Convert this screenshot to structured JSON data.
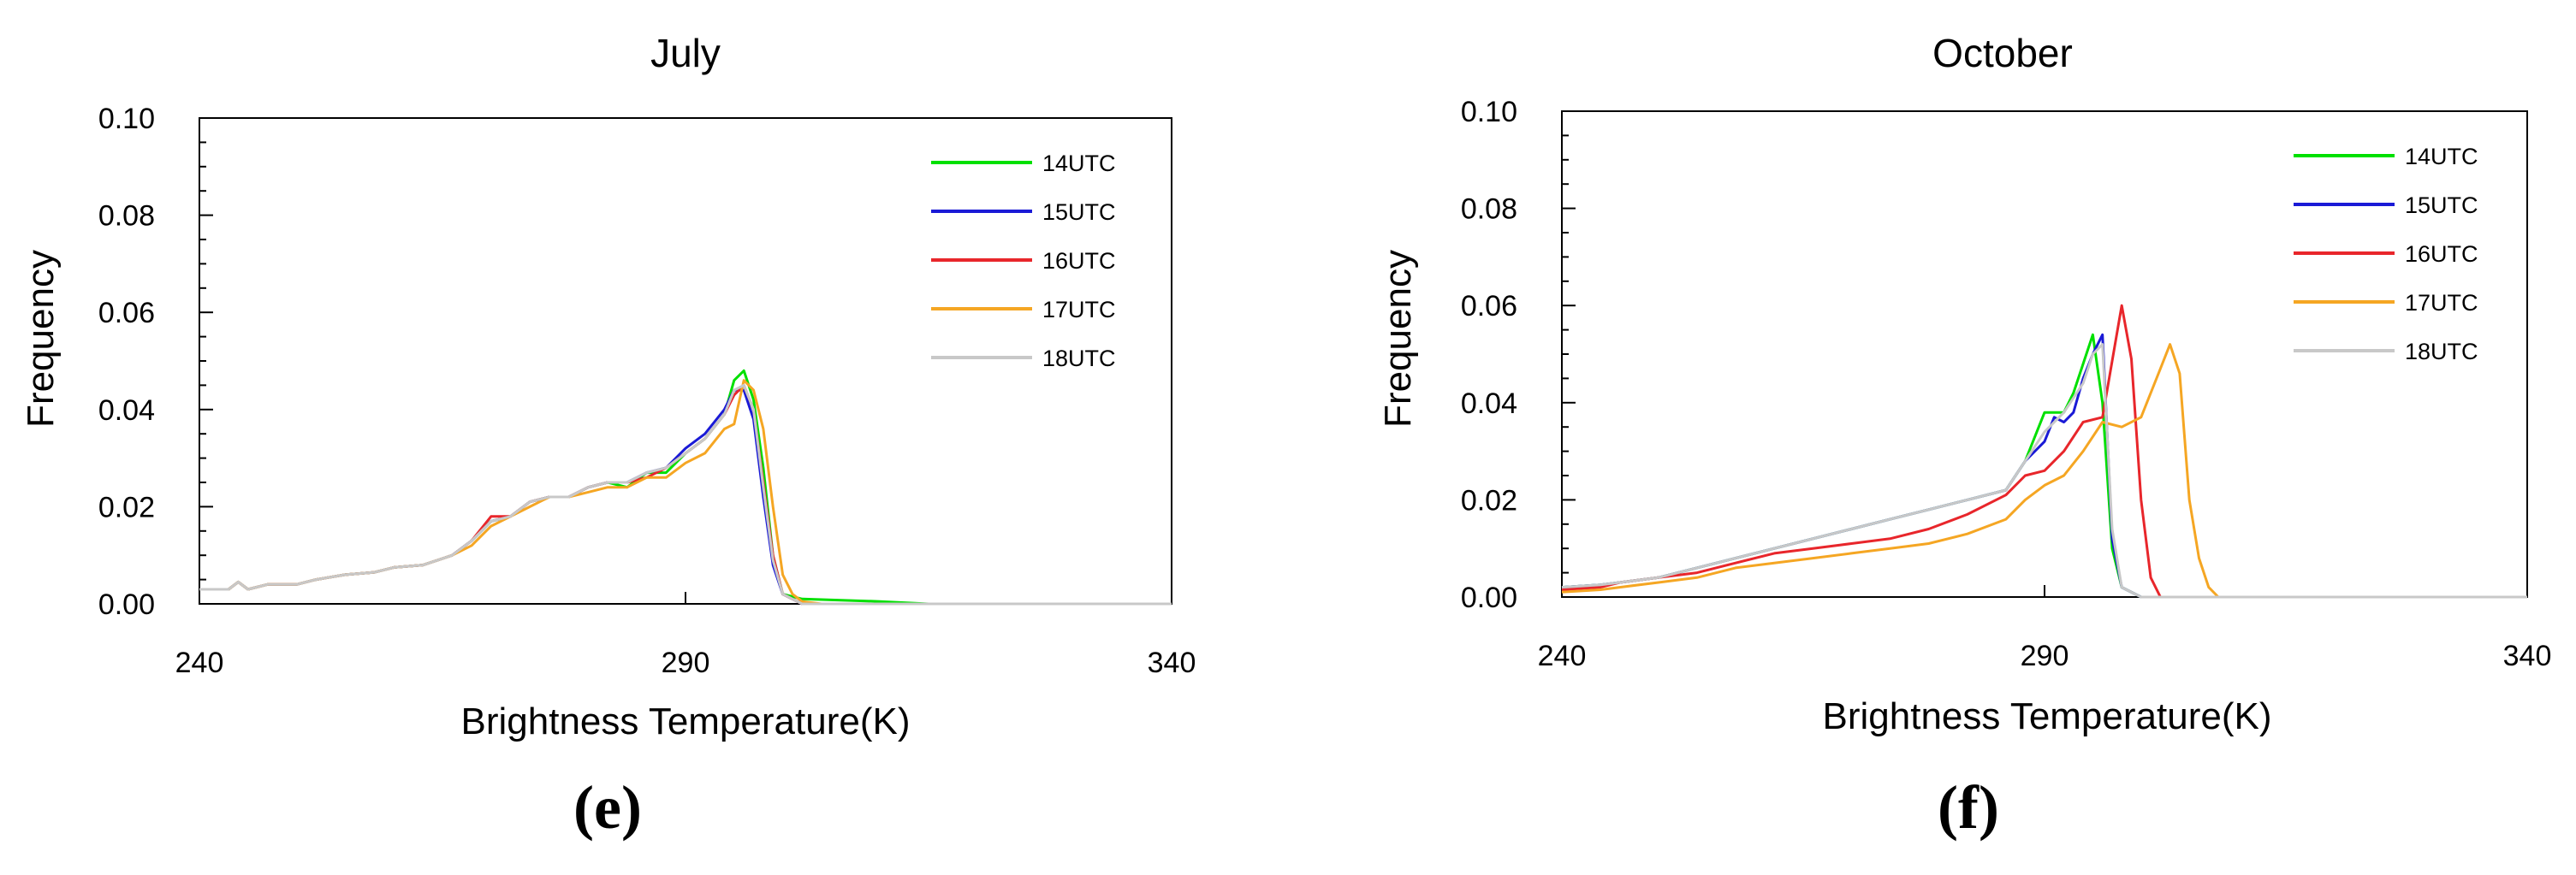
{
  "panels": [
    {
      "letter_text": "(e)"
    },
    {
      "letter_text": "(f)"
    }
  ],
  "chart_data": [
    {
      "type": "line",
      "title": "July",
      "xlabel": "Brightness Temperature(K)",
      "ylabel": "Frequency",
      "xlim": [
        240,
        340
      ],
      "ylim": [
        0,
        0.1
      ],
      "xticks": [
        240,
        290,
        340
      ],
      "yticks": [
        0.0,
        0.02,
        0.04,
        0.06,
        0.08,
        0.1
      ],
      "ytick_labels": [
        "0.00",
        "0.02",
        "0.04",
        "0.06",
        "0.08",
        "0.10"
      ],
      "legend_position": "top-right",
      "series": [
        {
          "name": "14UTC",
          "color": "#00e000",
          "x": [
            240,
            243,
            244,
            245,
            247,
            250,
            252,
            255,
            258,
            260,
            263,
            266,
            268,
            270,
            272,
            274,
            276,
            278,
            280,
            282,
            284,
            286,
            288,
            290,
            292,
            294,
            295,
            296,
            297,
            298,
            299,
            300,
            302,
            310,
            315,
            340
          ],
          "y": [
            0.003,
            0.003,
            0.0045,
            0.003,
            0.004,
            0.004,
            0.005,
            0.006,
            0.0065,
            0.0075,
            0.008,
            0.01,
            0.013,
            0.017,
            0.018,
            0.021,
            0.022,
            0.022,
            0.024,
            0.025,
            0.024,
            0.027,
            0.027,
            0.031,
            0.034,
            0.039,
            0.046,
            0.048,
            0.042,
            0.028,
            0.01,
            0.002,
            0.001,
            0.0005,
            0.0,
            0.0
          ]
        },
        {
          "name": "15UTC",
          "color": "#1a1ad6",
          "x": [
            240,
            243,
            244,
            245,
            247,
            250,
            252,
            255,
            258,
            260,
            263,
            266,
            268,
            270,
            272,
            274,
            276,
            278,
            280,
            282,
            284,
            286,
            288,
            290,
            292,
            294,
            295,
            296,
            297,
            298,
            299,
            300,
            302,
            340
          ],
          "y": [
            0.003,
            0.003,
            0.0045,
            0.003,
            0.004,
            0.004,
            0.005,
            0.006,
            0.0065,
            0.0075,
            0.008,
            0.01,
            0.013,
            0.017,
            0.018,
            0.021,
            0.022,
            0.022,
            0.024,
            0.025,
            0.025,
            0.027,
            0.028,
            0.032,
            0.035,
            0.04,
            0.044,
            0.044,
            0.038,
            0.022,
            0.008,
            0.002,
            0.0,
            0.0
          ]
        },
        {
          "name": "16UTC",
          "color": "#e8262b",
          "x": [
            240,
            243,
            244,
            245,
            247,
            250,
            252,
            255,
            258,
            260,
            263,
            266,
            268,
            270,
            272,
            274,
            276,
            278,
            280,
            282,
            284,
            286,
            288,
            290,
            292,
            294,
            295,
            296,
            297,
            298,
            299,
            300,
            302,
            340
          ],
          "y": [
            0.003,
            0.003,
            0.0045,
            0.003,
            0.004,
            0.004,
            0.005,
            0.006,
            0.0065,
            0.0075,
            0.008,
            0.01,
            0.013,
            0.018,
            0.018,
            0.021,
            0.022,
            0.022,
            0.024,
            0.025,
            0.025,
            0.026,
            0.028,
            0.031,
            0.034,
            0.039,
            0.043,
            0.045,
            0.04,
            0.025,
            0.01,
            0.002,
            0.0,
            0.0
          ]
        },
        {
          "name": "17UTC",
          "color": "#f5a623",
          "x": [
            240,
            243,
            244,
            245,
            247,
            250,
            252,
            255,
            258,
            260,
            263,
            266,
            268,
            270,
            272,
            274,
            276,
            278,
            280,
            282,
            284,
            286,
            288,
            290,
            292,
            294,
            295,
            296,
            297,
            298,
            299,
            300,
            301,
            302,
            304,
            340
          ],
          "y": [
            0.003,
            0.003,
            0.0045,
            0.003,
            0.004,
            0.004,
            0.005,
            0.006,
            0.0065,
            0.0075,
            0.008,
            0.01,
            0.012,
            0.016,
            0.018,
            0.02,
            0.022,
            0.022,
            0.023,
            0.024,
            0.024,
            0.026,
            0.026,
            0.029,
            0.031,
            0.036,
            0.037,
            0.046,
            0.044,
            0.036,
            0.02,
            0.006,
            0.002,
            0.0005,
            0.0,
            0.0
          ]
        },
        {
          "name": "18UTC",
          "color": "#c8c8c8",
          "x": [
            240,
            243,
            244,
            245,
            247,
            250,
            252,
            255,
            258,
            260,
            263,
            266,
            268,
            270,
            272,
            274,
            276,
            278,
            280,
            282,
            284,
            286,
            288,
            290,
            292,
            294,
            295,
            296,
            297,
            298,
            299,
            300,
            302,
            340
          ],
          "y": [
            0.003,
            0.003,
            0.0045,
            0.003,
            0.004,
            0.004,
            0.005,
            0.006,
            0.0065,
            0.0075,
            0.008,
            0.01,
            0.013,
            0.017,
            0.018,
            0.021,
            0.022,
            0.022,
            0.024,
            0.025,
            0.025,
            0.027,
            0.028,
            0.031,
            0.034,
            0.039,
            0.044,
            0.045,
            0.04,
            0.024,
            0.009,
            0.002,
            0.0,
            0.0
          ]
        }
      ]
    },
    {
      "type": "line",
      "title": "October",
      "xlabel": "Brightness Temperature(K)",
      "ylabel": "Frequency",
      "xlim": [
        240,
        340
      ],
      "ylim": [
        0,
        0.1
      ],
      "xticks": [
        240,
        290,
        340
      ],
      "yticks": [
        0.0,
        0.02,
        0.04,
        0.06,
        0.08,
        0.1
      ],
      "ytick_labels": [
        "0.00",
        "0.02",
        "0.04",
        "0.06",
        "0.08",
        "0.10"
      ],
      "legend_position": "top-right",
      "series": [
        {
          "name": "14UTC",
          "color": "#00e000",
          "x": [
            240,
            244,
            246,
            250,
            254,
            258,
            262,
            266,
            270,
            274,
            278,
            282,
            286,
            288,
            290,
            291,
            292,
            293,
            294,
            295,
            296,
            297,
            298,
            300,
            340
          ],
          "y": [
            0.002,
            0.0025,
            0.003,
            0.004,
            0.006,
            0.008,
            0.01,
            0.012,
            0.014,
            0.016,
            0.018,
            0.02,
            0.022,
            0.028,
            0.038,
            0.038,
            0.038,
            0.042,
            0.048,
            0.054,
            0.04,
            0.01,
            0.002,
            0.0,
            0.0
          ]
        },
        {
          "name": "15UTC",
          "color": "#1a1ad6",
          "x": [
            240,
            244,
            246,
            250,
            254,
            258,
            262,
            266,
            270,
            274,
            278,
            282,
            286,
            288,
            290,
            291,
            292,
            293,
            294,
            295,
            296,
            297,
            298,
            300,
            340
          ],
          "y": [
            0.002,
            0.0025,
            0.003,
            0.004,
            0.006,
            0.008,
            0.01,
            0.012,
            0.014,
            0.016,
            0.018,
            0.02,
            0.022,
            0.028,
            0.032,
            0.037,
            0.036,
            0.038,
            0.045,
            0.05,
            0.054,
            0.012,
            0.002,
            0.0,
            0.0
          ]
        },
        {
          "name": "16UTC",
          "color": "#e8262b",
          "x": [
            240,
            244,
            246,
            250,
            254,
            258,
            262,
            266,
            270,
            274,
            278,
            282,
            286,
            288,
            290,
            292,
            294,
            296,
            298,
            299,
            300,
            301,
            302,
            340
          ],
          "y": [
            0.0015,
            0.002,
            0.003,
            0.004,
            0.005,
            0.007,
            0.009,
            0.01,
            0.011,
            0.012,
            0.014,
            0.017,
            0.021,
            0.025,
            0.026,
            0.03,
            0.036,
            0.037,
            0.06,
            0.049,
            0.02,
            0.004,
            0.0,
            0.0
          ]
        },
        {
          "name": "17UTC",
          "color": "#f5a623",
          "x": [
            240,
            244,
            246,
            250,
            254,
            258,
            262,
            266,
            270,
            274,
            278,
            282,
            286,
            288,
            290,
            292,
            294,
            296,
            298,
            300,
            302,
            303,
            304,
            305,
            306,
            307,
            308,
            340
          ],
          "y": [
            0.001,
            0.0015,
            0.002,
            0.003,
            0.004,
            0.006,
            0.007,
            0.008,
            0.009,
            0.01,
            0.011,
            0.013,
            0.016,
            0.02,
            0.023,
            0.025,
            0.03,
            0.036,
            0.035,
            0.037,
            0.047,
            0.052,
            0.046,
            0.02,
            0.008,
            0.002,
            0.0,
            0.0
          ]
        },
        {
          "name": "18UTC",
          "color": "#c8c8c8",
          "x": [
            240,
            244,
            246,
            250,
            254,
            258,
            262,
            266,
            270,
            274,
            278,
            282,
            286,
            288,
            290,
            292,
            294,
            295,
            296,
            297,
            298,
            300,
            340
          ],
          "y": [
            0.002,
            0.0025,
            0.003,
            0.004,
            0.006,
            0.008,
            0.01,
            0.012,
            0.014,
            0.016,
            0.018,
            0.02,
            0.022,
            0.028,
            0.034,
            0.038,
            0.044,
            0.05,
            0.052,
            0.014,
            0.002,
            0.0,
            0.0
          ]
        }
      ]
    }
  ]
}
